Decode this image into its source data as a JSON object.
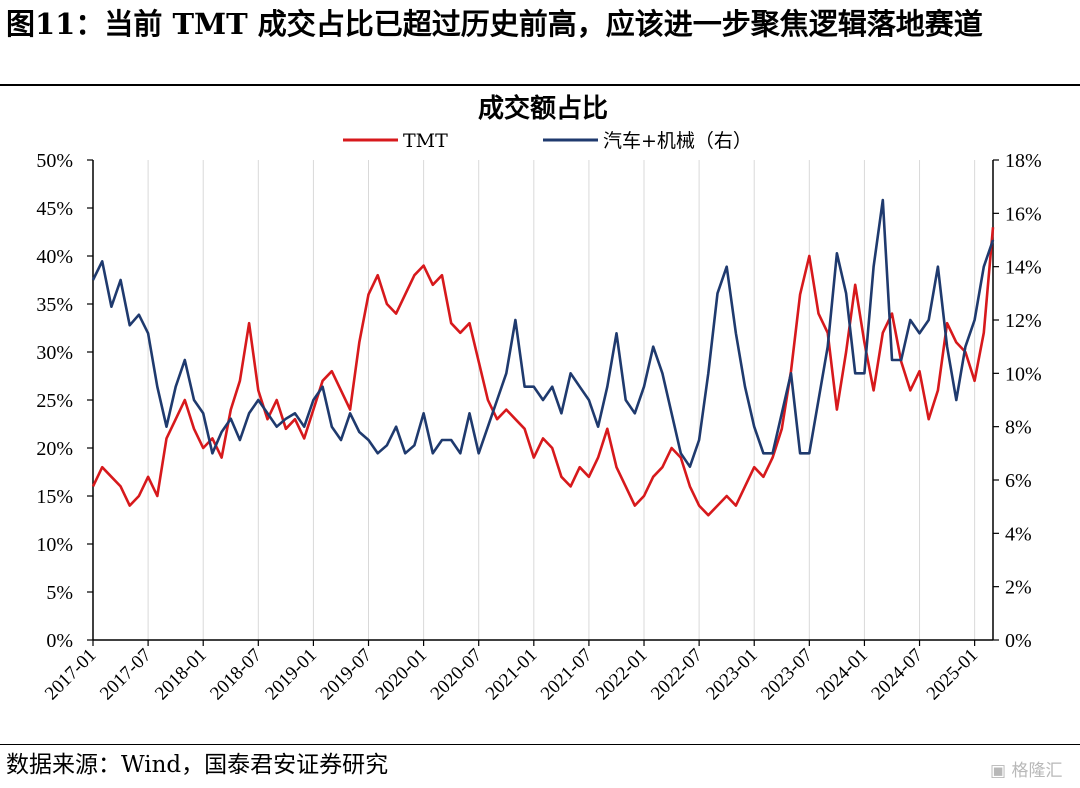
{
  "figure": {
    "title": "图11：当前 TMT 成交占比已超过历史前高，应该进一步聚焦逻辑落地赛道",
    "source": "数据来源：Wind，国泰君安证券研究",
    "watermark": "格隆汇"
  },
  "chart_data": {
    "type": "line",
    "title": "成交额占比",
    "legend_position": "top-center",
    "grid": "vertical-only",
    "colors": {
      "TMT": "#d7191c",
      "汽车+机械（右）": "#1f3a6e"
    },
    "x_axis": {
      "type": "date",
      "range": [
        "2017-01",
        "2025-03"
      ],
      "ticks": [
        "2017-01",
        "2017-07",
        "2018-01",
        "2018-07",
        "2019-01",
        "2019-07",
        "2020-01",
        "2020-07",
        "2021-01",
        "2021-07",
        "2022-01",
        "2022-07",
        "2023-01",
        "2023-07",
        "2024-01",
        "2024-07",
        "2025-01"
      ]
    },
    "y_left": {
      "range": [
        0,
        50
      ],
      "ticks": [
        "0%",
        "5%",
        "10%",
        "15%",
        "20%",
        "25%",
        "30%",
        "35%",
        "40%",
        "45%",
        "50%"
      ]
    },
    "y_right": {
      "range": [
        0,
        18
      ],
      "ticks": [
        "0%",
        "2%",
        "4%",
        "6%",
        "8%",
        "10%",
        "12%",
        "14%",
        "16%",
        "18%"
      ]
    },
    "series": [
      {
        "name": "TMT",
        "axis": "left",
        "x": [
          "2017-01",
          "2017-02",
          "2017-03",
          "2017-04",
          "2017-05",
          "2017-06",
          "2017-07",
          "2017-08",
          "2017-09",
          "2017-10",
          "2017-11",
          "2017-12",
          "2018-01",
          "2018-02",
          "2018-03",
          "2018-04",
          "2018-05",
          "2018-06",
          "2018-07",
          "2018-08",
          "2018-09",
          "2018-10",
          "2018-11",
          "2018-12",
          "2019-01",
          "2019-02",
          "2019-03",
          "2019-04",
          "2019-05",
          "2019-06",
          "2019-07",
          "2019-08",
          "2019-09",
          "2019-10",
          "2019-11",
          "2019-12",
          "2020-01",
          "2020-02",
          "2020-03",
          "2020-04",
          "2020-05",
          "2020-06",
          "2020-07",
          "2020-08",
          "2020-09",
          "2020-10",
          "2020-11",
          "2020-12",
          "2021-01",
          "2021-02",
          "2021-03",
          "2021-04",
          "2021-05",
          "2021-06",
          "2021-07",
          "2021-08",
          "2021-09",
          "2021-10",
          "2021-11",
          "2021-12",
          "2022-01",
          "2022-02",
          "2022-03",
          "2022-04",
          "2022-05",
          "2022-06",
          "2022-07",
          "2022-08",
          "2022-09",
          "2022-10",
          "2022-11",
          "2022-12",
          "2023-01",
          "2023-02",
          "2023-03",
          "2023-04",
          "2023-05",
          "2023-06",
          "2023-07",
          "2023-08",
          "2023-09",
          "2023-10",
          "2023-11",
          "2023-12",
          "2024-01",
          "2024-02",
          "2024-03",
          "2024-04",
          "2024-05",
          "2024-06",
          "2024-07",
          "2024-08",
          "2024-09",
          "2024-10",
          "2024-11",
          "2024-12",
          "2025-01",
          "2025-02",
          "2025-03"
        ],
        "values": [
          16,
          18,
          17,
          16,
          14,
          15,
          17,
          15,
          21,
          23,
          25,
          22,
          20,
          21,
          19,
          24,
          27,
          33,
          26,
          23,
          25,
          22,
          23,
          21,
          24,
          27,
          28,
          26,
          24,
          31,
          36,
          38,
          35,
          34,
          36,
          38,
          39,
          37,
          38,
          33,
          32,
          33,
          29,
          25,
          23,
          24,
          23,
          22,
          19,
          21,
          20,
          17,
          16,
          18,
          17,
          19,
          22,
          18,
          16,
          14,
          15,
          17,
          18,
          20,
          19,
          16,
          14,
          13,
          14,
          15,
          14,
          16,
          18,
          17,
          19,
          22,
          28,
          36,
          40,
          34,
          32,
          24,
          30,
          37,
          31,
          26,
          32,
          34,
          29,
          26,
          28,
          23,
          26,
          33,
          31,
          30,
          27,
          32,
          43
        ]
      },
      {
        "name": "汽车+机械（右）",
        "axis": "right",
        "x": [
          "2017-01",
          "2017-02",
          "2017-03",
          "2017-04",
          "2017-05",
          "2017-06",
          "2017-07",
          "2017-08",
          "2017-09",
          "2017-10",
          "2017-11",
          "2017-12",
          "2018-01",
          "2018-02",
          "2018-03",
          "2018-04",
          "2018-05",
          "2018-06",
          "2018-07",
          "2018-08",
          "2018-09",
          "2018-10",
          "2018-11",
          "2018-12",
          "2019-01",
          "2019-02",
          "2019-03",
          "2019-04",
          "2019-05",
          "2019-06",
          "2019-07",
          "2019-08",
          "2019-09",
          "2019-10",
          "2019-11",
          "2019-12",
          "2020-01",
          "2020-02",
          "2020-03",
          "2020-04",
          "2020-05",
          "2020-06",
          "2020-07",
          "2020-08",
          "2020-09",
          "2020-10",
          "2020-11",
          "2020-12",
          "2021-01",
          "2021-02",
          "2021-03",
          "2021-04",
          "2021-05",
          "2021-06",
          "2021-07",
          "2021-08",
          "2021-09",
          "2021-10",
          "2021-11",
          "2021-12",
          "2022-01",
          "2022-02",
          "2022-03",
          "2022-04",
          "2022-05",
          "2022-06",
          "2022-07",
          "2022-08",
          "2022-09",
          "2022-10",
          "2022-11",
          "2022-12",
          "2023-01",
          "2023-02",
          "2023-03",
          "2023-04",
          "2023-05",
          "2023-06",
          "2023-07",
          "2023-08",
          "2023-09",
          "2023-10",
          "2023-11",
          "2023-12",
          "2024-01",
          "2024-02",
          "2024-03",
          "2024-04",
          "2024-05",
          "2024-06",
          "2024-07",
          "2024-08",
          "2024-09",
          "2024-10",
          "2024-11",
          "2024-12",
          "2025-01",
          "2025-02",
          "2025-03"
        ],
        "values": [
          13.5,
          14.2,
          12.5,
          13.5,
          11.8,
          12.2,
          11.5,
          9.5,
          8,
          9.5,
          10.5,
          9,
          8.5,
          7,
          7.8,
          8.3,
          7.5,
          8.5,
          9,
          8.5,
          8,
          8.3,
          8.5,
          8,
          9,
          9.5,
          8,
          7.5,
          8.5,
          7.8,
          7.5,
          7,
          7.3,
          8,
          7,
          7.3,
          8.5,
          7,
          7.5,
          7.5,
          7,
          8.5,
          7,
          8,
          9,
          10,
          12,
          9.5,
          9.5,
          9,
          9.5,
          8.5,
          10,
          9.5,
          9,
          8,
          9.5,
          11.5,
          9,
          8.5,
          9.5,
          11,
          10,
          8.5,
          7,
          6.5,
          7.5,
          10,
          13,
          14,
          11.5,
          9.5,
          8,
          7,
          7,
          8.5,
          10,
          7,
          7,
          9,
          11,
          14.5,
          13,
          10,
          10,
          14,
          16.5,
          10.5,
          10.5,
          12,
          11.5,
          12,
          14,
          11,
          9,
          11,
          12,
          14,
          15
        ]
      }
    ]
  }
}
